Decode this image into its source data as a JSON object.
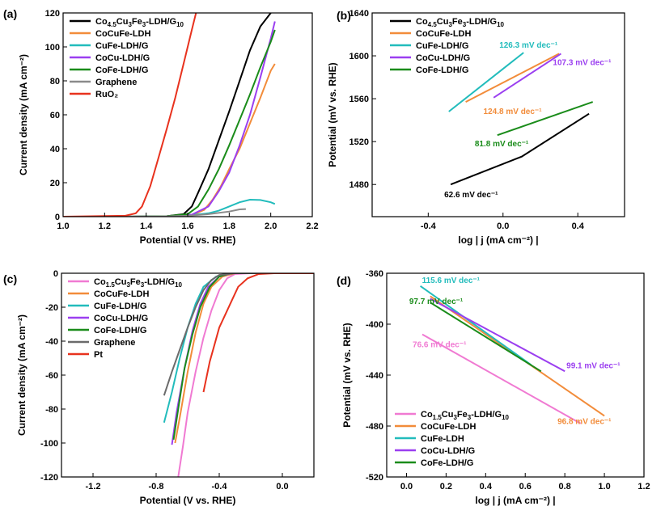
{
  "chart_data": [
    {
      "panel": "(a)",
      "type": "line",
      "xlabel": "Potential (V vs. RHE)",
      "ylabel": "Current density (mA cm⁻²)",
      "xlim": [
        1.0,
        2.2
      ],
      "ylim": [
        0,
        120
      ],
      "xticks": [
        "1.0",
        "1.2",
        "1.4",
        "1.6",
        "1.8",
        "2.0",
        "2.2"
      ],
      "yticks": [
        "0",
        "20",
        "40",
        "60",
        "80",
        "100",
        "120"
      ],
      "legend_position": "top-left",
      "series": [
        {
          "name": "Co[4.5]Cu[3]Fe[3]-LDH/G[10]",
          "color": "#000000",
          "x": [
            1.0,
            1.3,
            1.5,
            1.58,
            1.62,
            1.65,
            1.7,
            1.75,
            1.8,
            1.85,
            1.9,
            1.95,
            2.0
          ],
          "y": [
            0,
            0,
            0.3,
            1.5,
            6,
            14,
            28,
            45,
            62,
            80,
            98,
            112,
            120
          ]
        },
        {
          "name": "CoCuFe-LDH",
          "color": "#f28c3a",
          "x": [
            1.0,
            1.3,
            1.5,
            1.62,
            1.68,
            1.72,
            1.76,
            1.8,
            1.85,
            1.9,
            1.95,
            2.0,
            2.02
          ],
          "y": [
            0,
            0,
            0.2,
            0.8,
            4,
            10,
            18,
            28,
            40,
            55,
            70,
            86,
            90
          ]
        },
        {
          "name": "CuFe-LDH/G",
          "color": "#22bcbc",
          "x": [
            1.0,
            1.3,
            1.5,
            1.6,
            1.7,
            1.75,
            1.8,
            1.85,
            1.9,
            1.95,
            2.0,
            2.02
          ],
          "y": [
            0,
            0,
            0.2,
            0.7,
            2,
            3.5,
            6,
            8.5,
            10,
            9.8,
            8.5,
            7.5
          ]
        },
        {
          "name": "CoCu-LDH/G",
          "color": "#9b3ff0",
          "x": [
            1.0,
            1.3,
            1.5,
            1.62,
            1.7,
            1.75,
            1.8,
            1.85,
            1.9,
            1.95,
            2.0,
            2.02
          ],
          "y": [
            0,
            0,
            0.2,
            1.2,
            6,
            15,
            26,
            42,
            60,
            82,
            105,
            115
          ]
        },
        {
          "name": "CoFe-LDH/G",
          "color": "#1a8c1a",
          "x": [
            1.0,
            1.3,
            1.5,
            1.6,
            1.65,
            1.7,
            1.75,
            1.8,
            1.85,
            1.9,
            1.95,
            2.0,
            2.02
          ],
          "y": [
            0,
            0,
            0.3,
            1.5,
            6,
            16,
            28,
            42,
            57,
            72,
            88,
            103,
            110
          ]
        },
        {
          "name": "Graphene",
          "color": "#8a8a8a",
          "x": [
            1.0,
            1.3,
            1.5,
            1.6,
            1.7,
            1.8,
            1.85,
            1.88
          ],
          "y": [
            0,
            0,
            0.2,
            0.5,
            1.5,
            3,
            4.3,
            4.5
          ]
        },
        {
          "name": "RuO₂",
          "color": "#e8321e",
          "x": [
            1.0,
            1.3,
            1.35,
            1.38,
            1.42,
            1.46,
            1.5,
            1.54,
            1.58,
            1.62,
            1.64
          ],
          "y": [
            0,
            0.5,
            2,
            6,
            18,
            35,
            52,
            70,
            90,
            110,
            120
          ]
        }
      ]
    },
    {
      "panel": "(b)",
      "type": "line",
      "xlabel": "log | j (mA cm⁻²) |",
      "ylabel": "Potential (mV vs. RHE)",
      "xlim": [
        -0.7,
        0.65
      ],
      "ylim": [
        1450,
        1640
      ],
      "xticks": [
        "-0.4",
        "0.0",
        "0.4"
      ],
      "xtick_values": [
        -0.4,
        0.0,
        0.4
      ],
      "yticks": [
        "1480",
        "1520",
        "1560",
        "1600",
        "1640"
      ],
      "legend_position": "top-right",
      "series": [
        {
          "name": "Co[4.5]Cu[3]Fe[3]-LDH/G[10]",
          "color": "#000000",
          "x": [
            -0.28,
            0.1,
            0.46
          ],
          "y": [
            1480,
            1506,
            1546
          ],
          "label": "62.6 mV dec⁻¹"
        },
        {
          "name": "CoCuFe-LDH",
          "color": "#f28c3a",
          "x": [
            -0.2,
            0.3
          ],
          "y": [
            1557,
            1602
          ],
          "label": "124.8 mV dec⁻¹"
        },
        {
          "name": "CuFe-LDH/G",
          "color": "#22bcbc",
          "x": [
            -0.29,
            0.11
          ],
          "y": [
            1548,
            1603
          ],
          "label": "126.3 mV dec⁻¹"
        },
        {
          "name": "CoCu-LDH/G",
          "color": "#9b3ff0",
          "x": [
            -0.05,
            0.31
          ],
          "y": [
            1561,
            1602
          ],
          "label": "107.3 mV dec⁻¹"
        },
        {
          "name": "CoFe-LDH/G",
          "color": "#1a8c1a",
          "x": [
            -0.03,
            0.48
          ],
          "y": [
            1526,
            1557
          ],
          "label": "81.8 mV dec⁻¹"
        }
      ]
    },
    {
      "panel": "(c)",
      "type": "line",
      "xlabel": "Potential (V vs. RHE)",
      "ylabel": "Current density (mA cm⁻²)",
      "xlim": [
        -1.4,
        0.2
      ],
      "ylim": [
        -120,
        0
      ],
      "xticks": [
        "-1.2",
        "-0.8",
        "-0.4",
        "0.0"
      ],
      "xtick_values": [
        -1.2,
        -0.8,
        -0.4,
        0.0
      ],
      "yticks": [
        "0",
        "-20",
        "-40",
        "-60",
        "-80",
        "-100",
        "-120"
      ],
      "legend_position": "top-left",
      "series": [
        {
          "name": "Co[1.5]Cu[3]Fe[3]-LDH/G[10]",
          "color": "#f07ad2",
          "x": [
            0.2,
            -0.2,
            -0.3,
            -0.35,
            -0.4,
            -0.45,
            -0.5,
            -0.55,
            -0.6,
            -0.63,
            -0.66
          ],
          "y": [
            0,
            0,
            -0.5,
            -3,
            -10,
            -22,
            -38,
            -58,
            -82,
            -102,
            -120
          ]
        },
        {
          "name": "CoCuFe-LDH",
          "color": "#f28c3a",
          "x": [
            0.2,
            -0.3,
            -0.38,
            -0.45,
            -0.5,
            -0.55,
            -0.6,
            -0.65,
            -0.68
          ],
          "y": [
            0,
            0,
            -2,
            -8,
            -18,
            -35,
            -58,
            -85,
            -100
          ]
        },
        {
          "name": "CuFe-LDH/G",
          "color": "#22bcbc",
          "x": [
            0.2,
            -0.35,
            -0.42,
            -0.5,
            -0.55,
            -0.6,
            -0.65,
            -0.7,
            -0.75
          ],
          "y": [
            0,
            0,
            -2,
            -8,
            -18,
            -32,
            -50,
            -70,
            -88
          ]
        },
        {
          "name": "CoCu-LDH/G",
          "color": "#9b3ff0",
          "x": [
            0.2,
            -0.32,
            -0.4,
            -0.47,
            -0.52,
            -0.57,
            -0.62,
            -0.67,
            -0.7
          ],
          "y": [
            0,
            0,
            -2,
            -8,
            -18,
            -34,
            -56,
            -82,
            -101
          ]
        },
        {
          "name": "CoFe-LDH/G",
          "color": "#1a8c1a",
          "x": [
            0.2,
            -0.33,
            -0.4,
            -0.46,
            -0.52,
            -0.57,
            -0.62,
            -0.66,
            -0.69
          ],
          "y": [
            0,
            0,
            -2,
            -8,
            -20,
            -36,
            -56,
            -80,
            -98
          ]
        },
        {
          "name": "Graphene",
          "color": "#6b6b6b",
          "x": [
            0.2,
            -0.3,
            -0.4,
            -0.45,
            -0.5,
            -0.55,
            -0.6,
            -0.65,
            -0.7,
            -0.75
          ],
          "y": [
            0,
            0,
            -1,
            -4,
            -10,
            -20,
            -32,
            -45,
            -58,
            -72
          ]
        },
        {
          "name": "Pt",
          "color": "#e8321e",
          "x": [
            0.2,
            -0.05,
            -0.15,
            -0.22,
            -0.28,
            -0.32,
            -0.36,
            -0.4,
            -0.43,
            -0.46,
            -0.5
          ],
          "y": [
            0,
            0,
            -0.5,
            -3,
            -8,
            -16,
            -24,
            -32,
            -42,
            -52,
            -70
          ]
        }
      ]
    },
    {
      "panel": "(d)",
      "type": "line",
      "xlabel": "log | j (mA cm⁻²) |",
      "ylabel": "Potential (mV vs. RHE)",
      "xlim": [
        -0.1,
        1.2
      ],
      "ylim": [
        -520,
        -360
      ],
      "xticks": [
        "0.0",
        "0.2",
        "0.4",
        "0.6",
        "0.8",
        "1.0",
        "1.2"
      ],
      "xtick_values": [
        0.0,
        0.2,
        0.4,
        0.6,
        0.8,
        1.0,
        1.2
      ],
      "yticks": [
        "-360",
        "-400",
        "-440",
        "-480",
        "-520"
      ],
      "legend_position": "bottom-left",
      "series": [
        {
          "name": "Co[1.5]Cu[3]Fe[3]-LDH/G[10]",
          "color": "#f07ad2",
          "x": [
            0.08,
            0.88
          ],
          "y": [
            -408,
            -478
          ],
          "label": "76.6 mV dec⁻¹"
        },
        {
          "name": "CoCuFe-LDH",
          "color": "#f28c3a",
          "x": [
            0.12,
            1.0
          ],
          "y": [
            -378,
            -472
          ],
          "label": "96.8 mV dec⁻¹"
        },
        {
          "name": "CuFe-LDH",
          "color": "#22bcbc",
          "x": [
            0.07,
            0.63
          ],
          "y": [
            -370,
            -432
          ],
          "label": "115.6 mV dec⁻¹"
        },
        {
          "name": "CoCu-LDH/G",
          "color": "#9b3ff0",
          "x": [
            0.12,
            0.8
          ],
          "y": [
            -380,
            -437
          ],
          "label": "99.1 mV dec⁻¹"
        },
        {
          "name": "CoFe-LDH/G",
          "color": "#1a8c1a",
          "x": [
            0.12,
            0.68
          ],
          "y": [
            -383,
            -437
          ],
          "label": "97.7 mV dec⁻¹"
        }
      ]
    }
  ]
}
